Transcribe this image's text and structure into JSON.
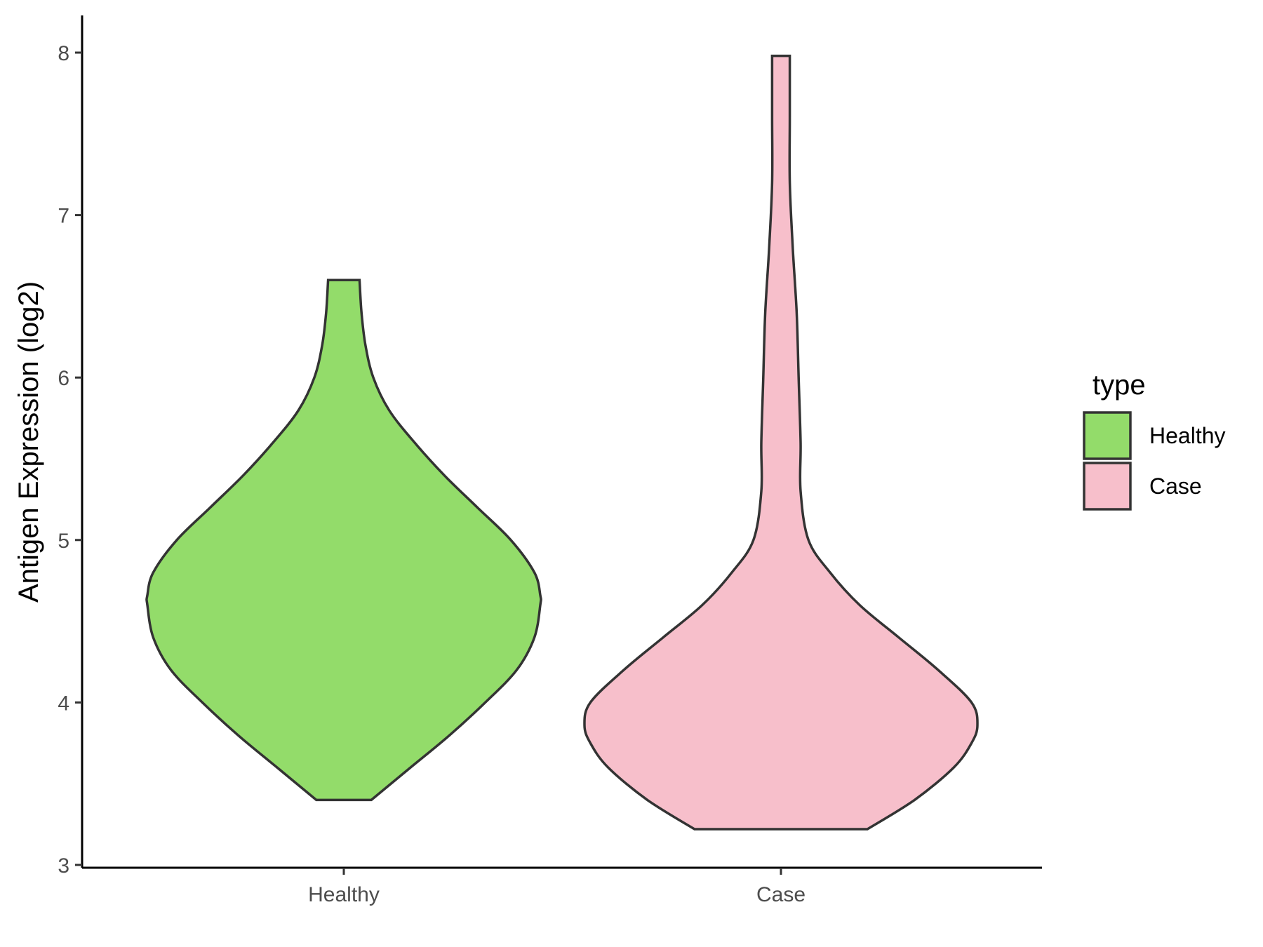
{
  "chart_data": {
    "type": "violin",
    "ylabel": "Antigen Expression (log2)",
    "xlabel": "",
    "ylim": [
      3,
      8.2
    ],
    "yticks": [
      3,
      4,
      5,
      6,
      7,
      8
    ],
    "categories": [
      "Healthy",
      "Case"
    ],
    "grid": false,
    "legend": {
      "title": "type",
      "position": "right",
      "entries": [
        {
          "label": "Healthy",
          "color": "#93DC6A"
        },
        {
          "label": "Case",
          "color": "#F7BFCB"
        }
      ]
    },
    "series": [
      {
        "category": "Healthy",
        "color": "#93DC6A",
        "min": 3.4,
        "max": 6.6,
        "density_profile": [
          [
            3.4,
            0.14
          ],
          [
            3.6,
            0.34
          ],
          [
            3.8,
            0.54
          ],
          [
            4.0,
            0.72
          ],
          [
            4.2,
            0.88
          ],
          [
            4.4,
            0.97
          ],
          [
            4.6,
            1.0
          ],
          [
            4.66,
            1.0
          ],
          [
            4.8,
            0.97
          ],
          [
            5.0,
            0.85
          ],
          [
            5.2,
            0.68
          ],
          [
            5.4,
            0.51
          ],
          [
            5.6,
            0.36
          ],
          [
            5.8,
            0.23
          ],
          [
            6.0,
            0.15
          ],
          [
            6.2,
            0.11
          ],
          [
            6.4,
            0.09
          ],
          [
            6.6,
            0.08
          ]
        ]
      },
      {
        "category": "Case",
        "color": "#F7BFCB",
        "min": 3.22,
        "max": 7.98,
        "density_profile": [
          [
            3.22,
            0.44
          ],
          [
            3.4,
            0.68
          ],
          [
            3.6,
            0.88
          ],
          [
            3.75,
            0.97
          ],
          [
            3.86,
            1.0
          ],
          [
            4.0,
            0.97
          ],
          [
            4.2,
            0.8
          ],
          [
            4.4,
            0.6
          ],
          [
            4.6,
            0.4
          ],
          [
            4.8,
            0.25
          ],
          [
            5.0,
            0.14
          ],
          [
            5.3,
            0.1
          ],
          [
            5.6,
            0.1
          ],
          [
            6.0,
            0.09
          ],
          [
            6.4,
            0.08
          ],
          [
            6.8,
            0.06
          ],
          [
            7.2,
            0.045
          ],
          [
            7.6,
            0.045
          ],
          [
            7.98,
            0.045
          ]
        ]
      }
    ]
  }
}
